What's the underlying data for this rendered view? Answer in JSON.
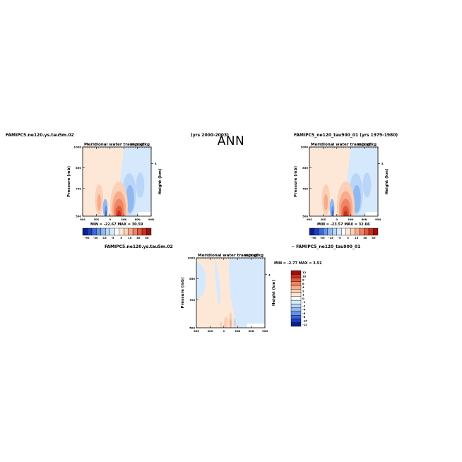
{
  "main_title": "ANN",
  "labels": {
    "left_case": "FAMIPC5.ne120.ys.tau5m.02",
    "middle_years": "(yrs 2000-2003)",
    "right_case": "FAMIPC5_ne120_tau900_01 (yrs 1979-1980)",
    "diff_case_a": "FAMIPC5.ne120.ys.tau5m.02",
    "diff_case_b": "~ FAMIPC5_ne120_tau900_01"
  },
  "stats": {
    "left": "MIN = -22.67   MAX =  30.59",
    "right": "MIN = -23.57   MAX =  32.66",
    "diff": "MIN =  -2.77   MAX =   3.51"
  },
  "colors": {
    "warm": [
      "#fde8d8",
      "#fbd0b6",
      "#f7ab8b",
      "#ee8564",
      "#e0593e",
      "#c83020",
      "#9c1010"
    ],
    "cool": [
      "#d6e8fb",
      "#b9d5f8",
      "#8fb9f2",
      "#6593e6",
      "#3b67d6",
      "#1f3dbf",
      "#0a1f8e"
    ]
  },
  "chart_data": [
    {
      "type": "heatmap",
      "panel": "left",
      "title": "Meridional water transport",
      "units": "m/s g/kg",
      "xlabel": "",
      "ylabel": "Pressure (mb)",
      "right_axis_label": "Height (km)",
      "x_ticks": [
        "60S",
        "30S",
        "0",
        "30N",
        "60N",
        "90N"
      ],
      "y_ticks": [
        "500",
        "700",
        "850",
        "1000"
      ],
      "right_ticks": [
        "4"
      ],
      "ylim": [
        1000,
        500
      ],
      "colorbar_ticks": [
        "-90",
        "-30",
        "-15",
        "-5",
        "5",
        "15",
        "30",
        "50"
      ],
      "min": -22.67,
      "max": 30.59
    },
    {
      "type": "heatmap",
      "panel": "right",
      "title": "Meridional water transport",
      "units": "m/s g/kg",
      "xlabel": "",
      "ylabel": "Pressure (mb)",
      "right_axis_label": "Height (km)",
      "x_ticks": [
        "60S",
        "30S",
        "0",
        "30N",
        "60N",
        "90N"
      ],
      "y_ticks": [
        "500",
        "700",
        "850",
        "1000"
      ],
      "right_ticks": [
        "4"
      ],
      "ylim": [
        1000,
        500
      ],
      "colorbar_ticks": [
        "-90",
        "-30",
        "-15",
        "-5",
        "5",
        "15",
        "30",
        "50"
      ],
      "min": -23.57,
      "max": 32.66
    },
    {
      "type": "heatmap",
      "panel": "difference",
      "title": "Meridional water transport",
      "units": "m/s g/kg",
      "xlabel": "",
      "ylabel": "Pressure (mb)",
      "right_axis_label": "Height (km)",
      "x_ticks": [
        "60S",
        "30S",
        "0",
        "30N",
        "60N",
        "90N"
      ],
      "y_ticks": [
        "500",
        "700",
        "850",
        "1000"
      ],
      "right_ticks": [
        "4"
      ],
      "ylim": [
        1000,
        500
      ],
      "colorbar_ticks": [
        "12",
        "10",
        "8",
        "6",
        "4",
        "2",
        "1",
        "0",
        "-1",
        "-2",
        "-4",
        "-6",
        "-8",
        "-10",
        "-12"
      ],
      "min": -2.77,
      "max": 3.51
    }
  ]
}
